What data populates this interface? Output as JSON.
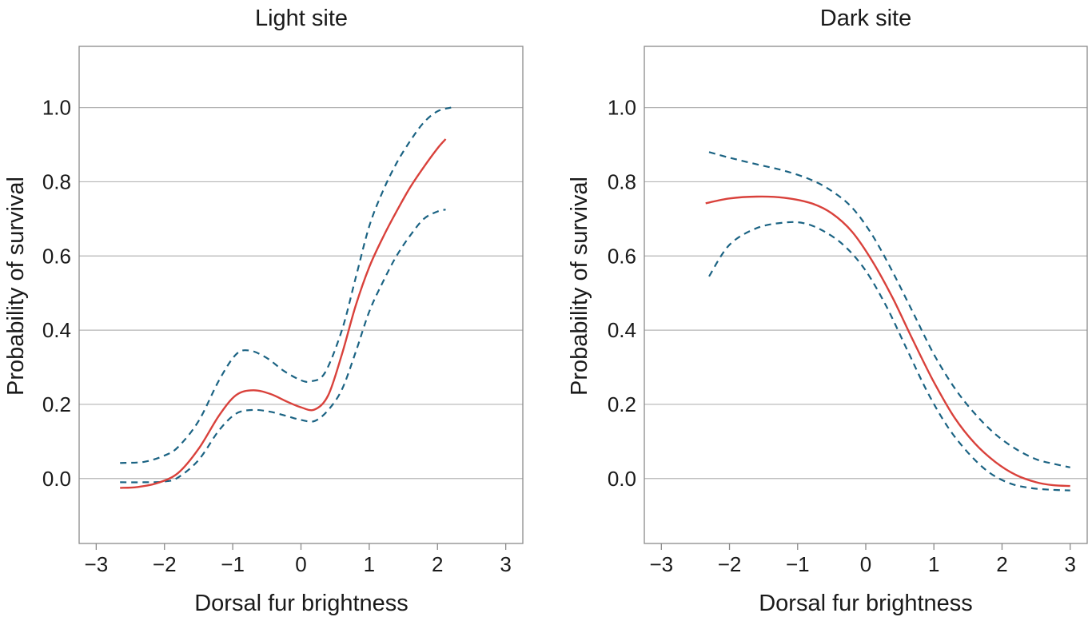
{
  "colors": {
    "fit_line": "#d9413b",
    "ci_line": "#1b6383",
    "grid": "#b5b5b5",
    "frame": "#8a8a8a",
    "text": "#1a1a1a"
  },
  "chart_data": [
    {
      "type": "line",
      "title": "Light site",
      "xlabel": "Dorsal fur brightness",
      "ylabel": "Probability of survival",
      "xlim": [
        -3.25,
        3.25
      ],
      "ylim": [
        -0.175,
        1.165
      ],
      "xticks": [
        -3,
        -2,
        -1,
        0,
        1,
        2,
        3
      ],
      "xtick_labels": [
        "−3",
        "−2",
        "−1",
        "0",
        "1",
        "2",
        "3"
      ],
      "yticks": [
        0.0,
        0.2,
        0.4,
        0.6,
        0.8,
        1.0
      ],
      "ytick_labels": [
        "0.0",
        "0.2",
        "0.4",
        "0.6",
        "0.8",
        "1.0"
      ],
      "grid": "horizontal",
      "series": [
        {
          "style": "solid",
          "x": [
            -2.65,
            -2.4,
            -2.1,
            -1.8,
            -1.5,
            -1.2,
            -0.95,
            -0.7,
            -0.45,
            -0.2,
            0.0,
            0.2,
            0.4,
            0.6,
            0.8,
            1.0,
            1.2,
            1.4,
            1.6,
            1.8,
            2.0,
            2.12
          ],
          "y": [
            -0.025,
            -0.023,
            -0.012,
            0.015,
            0.08,
            0.17,
            0.225,
            0.238,
            0.228,
            0.207,
            0.192,
            0.186,
            0.225,
            0.335,
            0.465,
            0.57,
            0.65,
            0.72,
            0.785,
            0.84,
            0.89,
            0.915
          ]
        },
        {
          "style": "dashed",
          "x": [
            -2.65,
            -2.3,
            -2.0,
            -1.8,
            -1.5,
            -1.2,
            -0.95,
            -0.75,
            -0.5,
            -0.25,
            0.0,
            0.15,
            0.35,
            0.6,
            0.8,
            1.0,
            1.2,
            1.4,
            1.6,
            1.8,
            2.0,
            2.2
          ],
          "y": [
            0.042,
            0.045,
            0.062,
            0.085,
            0.155,
            0.265,
            0.335,
            0.345,
            0.325,
            0.29,
            0.265,
            0.262,
            0.285,
            0.4,
            0.54,
            0.68,
            0.775,
            0.85,
            0.91,
            0.96,
            0.99,
            1.0
          ]
        },
        {
          "style": "dashed",
          "x": [
            -2.65,
            -2.3,
            -2.0,
            -1.8,
            -1.5,
            -1.2,
            -0.95,
            -0.7,
            -0.45,
            -0.2,
            0.0,
            0.2,
            0.4,
            0.6,
            0.8,
            1.0,
            1.2,
            1.4,
            1.6,
            1.8,
            2.0,
            2.12
          ],
          "y": [
            -0.01,
            -0.01,
            -0.008,
            0.003,
            0.05,
            0.13,
            0.175,
            0.185,
            0.18,
            0.168,
            0.158,
            0.155,
            0.185,
            0.24,
            0.34,
            0.45,
            0.53,
            0.6,
            0.655,
            0.7,
            0.72,
            0.725
          ]
        }
      ]
    },
    {
      "type": "line",
      "title": "Dark site",
      "xlabel": "Dorsal fur brightness",
      "ylabel": "Probability of survival",
      "xlim": [
        -3.25,
        3.25
      ],
      "ylim": [
        -0.175,
        1.165
      ],
      "xticks": [
        -3,
        -2,
        -1,
        0,
        1,
        2,
        3
      ],
      "xtick_labels": [
        "−3",
        "−2",
        "−1",
        "0",
        "1",
        "2",
        "3"
      ],
      "yticks": [
        0.0,
        0.2,
        0.4,
        0.6,
        0.8,
        1.0
      ],
      "ytick_labels": [
        "0.0",
        "0.2",
        "0.4",
        "0.6",
        "0.8",
        "1.0"
      ],
      "grid": "horizontal",
      "series": [
        {
          "style": "solid",
          "x": [
            -2.35,
            -2.0,
            -1.6,
            -1.2,
            -0.8,
            -0.5,
            -0.2,
            0.1,
            0.4,
            0.7,
            1.0,
            1.3,
            1.6,
            1.9,
            2.2,
            2.5,
            2.75,
            3.0
          ],
          "y": [
            0.742,
            0.755,
            0.76,
            0.757,
            0.742,
            0.715,
            0.665,
            0.585,
            0.485,
            0.37,
            0.26,
            0.165,
            0.095,
            0.045,
            0.01,
            -0.01,
            -0.018,
            -0.02
          ]
        },
        {
          "style": "dashed",
          "x": [
            -2.3,
            -2.0,
            -1.6,
            -1.2,
            -0.8,
            -0.5,
            -0.2,
            0.1,
            0.4,
            0.7,
            1.0,
            1.3,
            1.6,
            1.9,
            2.2,
            2.5,
            2.75,
            3.0
          ],
          "y": [
            0.88,
            0.865,
            0.847,
            0.83,
            0.805,
            0.775,
            0.73,
            0.655,
            0.555,
            0.445,
            0.335,
            0.245,
            0.175,
            0.12,
            0.08,
            0.052,
            0.04,
            0.03
          ]
        },
        {
          "style": "dashed",
          "x": [
            -2.3,
            -2.0,
            -1.6,
            -1.2,
            -0.9,
            -0.6,
            -0.3,
            0.0,
            0.3,
            0.6,
            0.9,
            1.2,
            1.5,
            1.8,
            2.1,
            2.4,
            2.7,
            3.0
          ],
          "y": [
            0.545,
            0.63,
            0.675,
            0.69,
            0.688,
            0.665,
            0.625,
            0.56,
            0.465,
            0.35,
            0.235,
            0.14,
            0.07,
            0.018,
            -0.012,
            -0.025,
            -0.03,
            -0.032
          ]
        }
      ]
    }
  ]
}
